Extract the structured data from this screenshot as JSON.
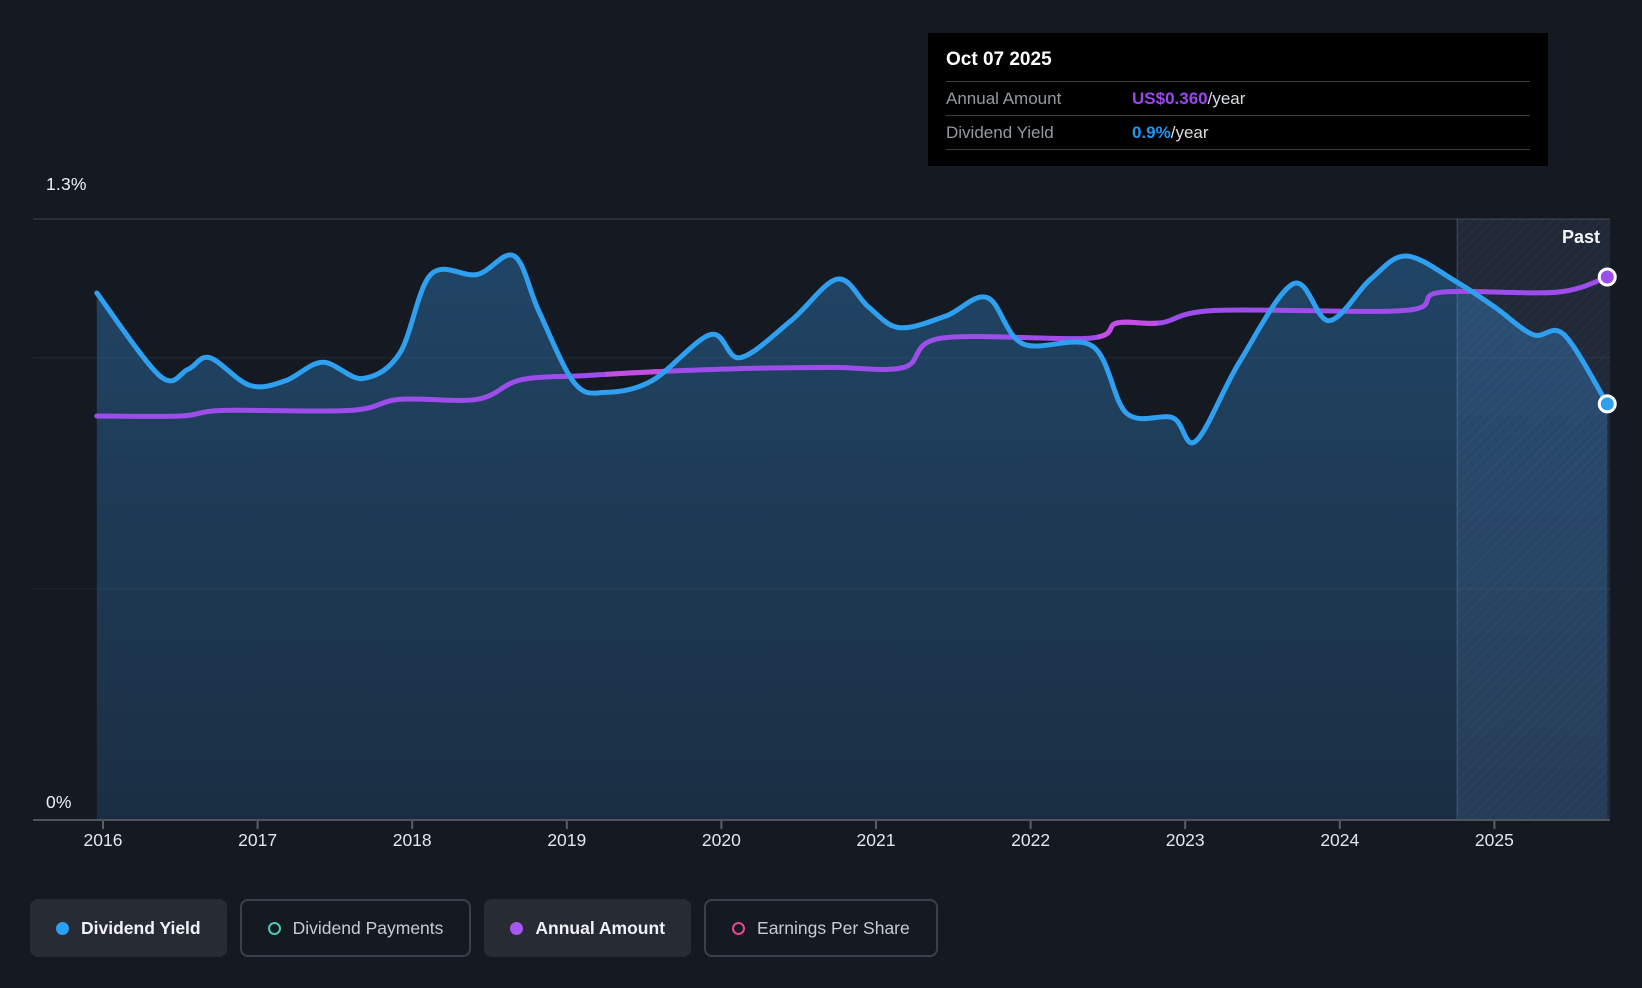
{
  "tooltip": {
    "date": "Oct 07 2025",
    "rows": [
      {
        "label": "Annual Amount",
        "value": "US$0.360",
        "suffix": "/year",
        "value_color": "#9d45ef"
      },
      {
        "label": "Dividend Yield",
        "value": "0.9%",
        "suffix": "/year",
        "value_color": "#2196f3"
      }
    ]
  },
  "axis": {
    "y_top_label": "1.3%",
    "y_bottom_label": "0%",
    "x_labels": [
      "2016",
      "2017",
      "2018",
      "2019",
      "2020",
      "2021",
      "2022",
      "2023",
      "2024",
      "2025"
    ]
  },
  "past_label": "Past",
  "legend": [
    {
      "label": "Dividend Yield",
      "color": "#2b9ef5",
      "style": "filled",
      "active": true
    },
    {
      "label": "Dividend Payments",
      "color": "#4cc8b9",
      "style": "hollow",
      "active": false
    },
    {
      "label": "Annual Amount",
      "color": "#a557f0",
      "style": "filled",
      "active": true
    },
    {
      "label": "Earnings Per Share",
      "color": "#e04a8f",
      "style": "hollow",
      "active": false
    }
  ],
  "chart_data": {
    "type": "line",
    "title": "Dividend yield and annual dividend amount history",
    "cursor_date": "Oct 07 2025",
    "x_axis": {
      "range": [
        2015.95,
        2025.85
      ],
      "ticks": [
        2016,
        2017,
        2018,
        2019,
        2020,
        2021,
        2022,
        2023,
        2024,
        2025
      ]
    },
    "y_axis": {
      "unit": "%",
      "range": [
        0,
        1.3
      ],
      "gridlines": [
        0,
        0.5,
        1.0,
        1.3
      ],
      "labeled_gridlines": {
        "top": "1.3%",
        "bottom": "0%"
      },
      "grid": true
    },
    "past_region_start": 2024.76,
    "legend_position": "bottom",
    "series": [
      {
        "name": "Dividend Yield",
        "unit": "%",
        "color": "#2f9ff0",
        "type": "area-line",
        "end_value": 0.9,
        "points": [
          [
            2015.96,
            1.14
          ],
          [
            2016.37,
            0.96
          ],
          [
            2016.55,
            0.975
          ],
          [
            2016.69,
            1.0
          ],
          [
            2016.95,
            0.94
          ],
          [
            2017.18,
            0.95
          ],
          [
            2017.42,
            0.99
          ],
          [
            2017.68,
            0.955
          ],
          [
            2017.92,
            1.01
          ],
          [
            2018.12,
            1.18
          ],
          [
            2018.42,
            1.18
          ],
          [
            2018.66,
            1.22
          ],
          [
            2018.82,
            1.1
          ],
          [
            2019.05,
            0.945
          ],
          [
            2019.25,
            0.925
          ],
          [
            2019.55,
            0.95
          ],
          [
            2019.93,
            1.05
          ],
          [
            2020.12,
            1.0
          ],
          [
            2020.45,
            1.08
          ],
          [
            2020.75,
            1.17
          ],
          [
            2020.95,
            1.11
          ],
          [
            2021.15,
            1.065
          ],
          [
            2021.45,
            1.09
          ],
          [
            2021.72,
            1.13
          ],
          [
            2021.95,
            1.03
          ],
          [
            2022.4,
            1.025
          ],
          [
            2022.62,
            0.88
          ],
          [
            2022.92,
            0.87
          ],
          [
            2023.07,
            0.82
          ],
          [
            2023.35,
            0.99
          ],
          [
            2023.7,
            1.16
          ],
          [
            2023.93,
            1.08
          ],
          [
            2024.2,
            1.17
          ],
          [
            2024.43,
            1.22
          ],
          [
            2024.75,
            1.165
          ],
          [
            2025.0,
            1.11
          ],
          [
            2025.25,
            1.05
          ],
          [
            2025.45,
            1.05
          ],
          [
            2025.73,
            0.9
          ]
        ]
      },
      {
        "name": "Annual Amount",
        "unit": "US$/year",
        "color": "#9d4eea",
        "type": "line",
        "end_value": 0.36,
        "values_estimated": true,
        "highlight_color": "#c94fe2",
        "highlight_segments": [
          [
            2019.25,
            2019.65
          ],
          [
            2022.43,
            2022.82
          ]
        ],
        "points": [
          [
            2015.96,
            0.26
          ],
          [
            2016.5,
            0.26
          ],
          [
            2016.78,
            0.264
          ],
          [
            2017.6,
            0.264
          ],
          [
            2017.92,
            0.272
          ],
          [
            2018.42,
            0.272
          ],
          [
            2018.7,
            0.286
          ],
          [
            2019.1,
            0.289
          ],
          [
            2019.6,
            0.292
          ],
          [
            2020.1,
            0.294
          ],
          [
            2020.7,
            0.295
          ],
          [
            2021.18,
            0.295
          ],
          [
            2021.42,
            0.316
          ],
          [
            2022.38,
            0.316
          ],
          [
            2022.56,
            0.327
          ],
          [
            2022.84,
            0.327
          ],
          [
            2023.2,
            0.336
          ],
          [
            2024.42,
            0.336
          ],
          [
            2024.65,
            0.349
          ],
          [
            2025.4,
            0.349
          ],
          [
            2025.73,
            0.36
          ]
        ]
      }
    ]
  }
}
